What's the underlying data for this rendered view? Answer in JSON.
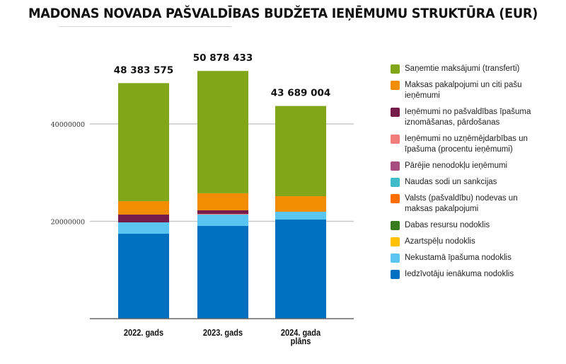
{
  "chart_data": {
    "type": "bar",
    "stacked": true,
    "title": "MADONAS NOVADA PAŠVALDĪBAS BUDŽETA IEŅĒMUMU STRUKTŪRA (EUR)",
    "xlabel": "",
    "ylabel": "",
    "ylim": [
      0,
      55000000
    ],
    "yticks": [
      20000000,
      40000000
    ],
    "ytick_labels": [
      "20000000",
      "40000000"
    ],
    "grid": true,
    "legend_position": "right",
    "categories": [
      "2022. gads",
      "2023. gads",
      "2024. gada plāns"
    ],
    "totals": [
      48383575,
      50878433,
      43689004
    ],
    "total_labels": [
      "48 383 575",
      "50 878 433",
      "43 689 004"
    ],
    "series": [
      {
        "name": "Iedzīvotāju ienākuma nodoklis",
        "color": "#0070C0",
        "values": [
          17450000,
          19050000,
          20360000
        ]
      },
      {
        "name": "Nekustamā īpašuma nodoklis",
        "color": "#5BC5F2",
        "values": [
          2330000,
          2330000,
          1600000
        ]
      },
      {
        "name": "Azartspēļu nodoklis",
        "color": "#FFC000",
        "values": [
          0,
          0,
          0
        ]
      },
      {
        "name": "Dabas resursu nodoklis",
        "color": "#3A7A1F",
        "values": [
          0,
          0,
          0
        ]
      },
      {
        "name": "Valsts (pašvaldību) nodevas un maksas pakalpojumi",
        "color": "#FF6F00",
        "values": [
          0,
          0,
          0
        ]
      },
      {
        "name": "Naudas sodi un sankcijas",
        "color": "#3FBCC7",
        "values": [
          0,
          0,
          0
        ]
      },
      {
        "name": "Pārējie nenodokļu ieņēmumi",
        "color": "#A84E7E",
        "values": [
          0,
          0,
          0
        ]
      },
      {
        "name": "Ieņēmumi no uzņēmējdarbības un īpašuma (procentu ieņēmumi)",
        "color": "#F07C7C",
        "values": [
          0,
          150000,
          0
        ]
      },
      {
        "name": "Ieņēmumi no pašvaldības īpašuma iznomāšanas, pārdošanas",
        "color": "#761C4B",
        "values": [
          1600000,
          730000,
          0
        ]
      },
      {
        "name": "Maksas pakalpojumi un citi pašu ieņēmumi",
        "color": "#F28C00",
        "values": [
          2760000,
          3500000,
          3200000
        ]
      },
      {
        "name": "Saņemtie maksājumi (transferti)",
        "color": "#82A61A",
        "values": [
          24243575,
          25118433,
          18529004
        ]
      }
    ]
  },
  "legend": [
    {
      "label": "Saņemtie maksājumi (transferti)",
      "color": "#82A61A"
    },
    {
      "label": "Maksas pakalpojumi un citi pašu ieņēmumi",
      "color": "#F28C00"
    },
    {
      "label": "Ieņēmumi no pašvaldības īpašuma iznomāšanas, pārdošanas",
      "color": "#761C4B"
    },
    {
      "label": "Ieņēmumi no uzņēmējdarbības un īpašuma (procentu ieņēmumi)",
      "color": "#F07C7C"
    },
    {
      "label": "Pārējie nenodokļu ieņēmumi",
      "color": "#A84E7E"
    },
    {
      "label": "Naudas sodi un sankcijas",
      "color": "#3FBCC7"
    },
    {
      "label": "Valsts (pašvaldību) nodevas un maksas pakalpojumi",
      "color": "#FF6F00"
    },
    {
      "label": "Dabas resursu nodoklis",
      "color": "#3A7A1F"
    },
    {
      "label": "Azartspēļu nodoklis",
      "color": "#FFC000"
    },
    {
      "label": "Nekustamā īpašuma nodoklis",
      "color": "#5BC5F2"
    },
    {
      "label": "Iedzīvotāju ienākuma nodoklis",
      "color": "#0070C0"
    }
  ]
}
